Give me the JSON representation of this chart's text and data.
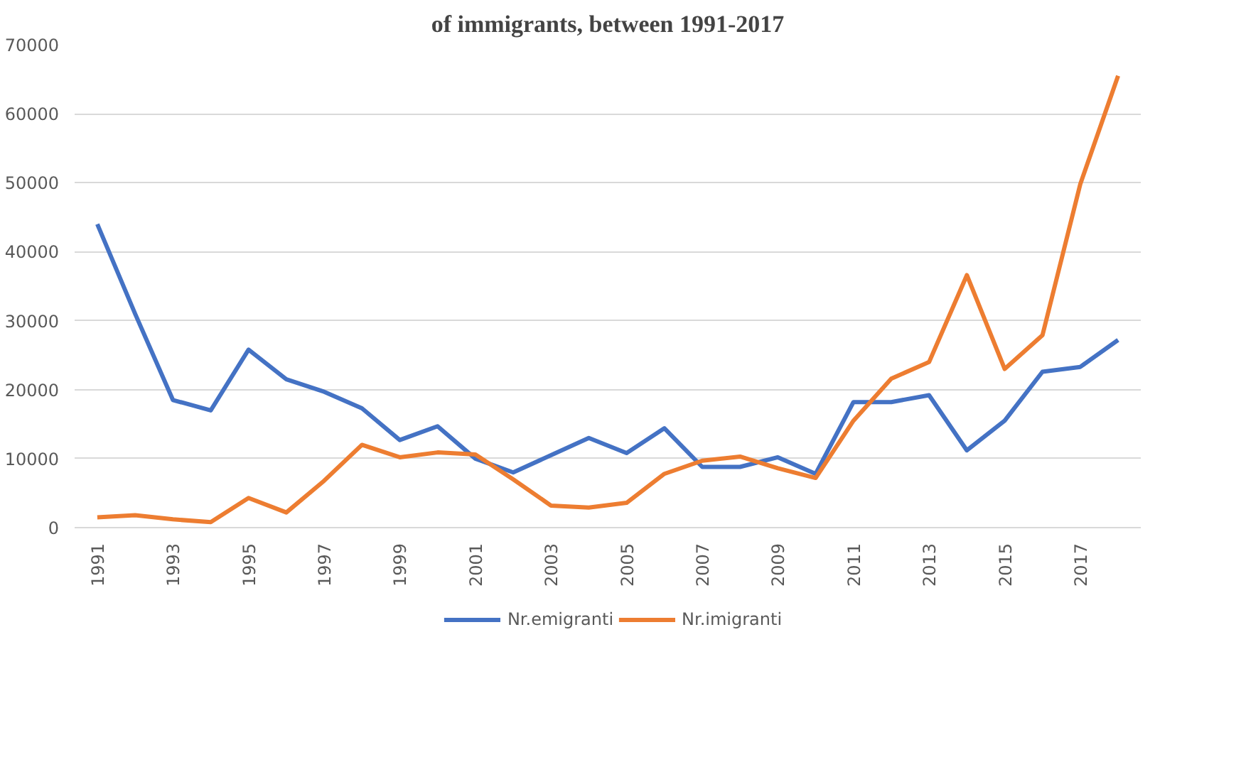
{
  "chart_data": {
    "type": "line",
    "title": "of immigrants, between 1991-2017",
    "categories": [
      "1991",
      null,
      "1993",
      null,
      "1995",
      null,
      "1997",
      null,
      "1999",
      null,
      "2001",
      null,
      "2003",
      null,
      "2005",
      null,
      "2007",
      null,
      "2009",
      null,
      "2011",
      null,
      "2013",
      null,
      "2015",
      null,
      "2017",
      null
    ],
    "series": [
      {
        "name": "Nr.emigranti",
        "color": "#4472c4",
        "values": [
          44000,
          31000,
          18500,
          17000,
          25800,
          21500,
          19700,
          17300,
          12700,
          14700,
          10000,
          8000,
          10500,
          13000,
          10800,
          14400,
          8800,
          8800,
          10200,
          7800,
          18200,
          18200,
          19200,
          11200,
          15500,
          22600,
          23300,
          27200
        ]
      },
      {
        "name": "Nr.imigranti",
        "color": "#ed7d31",
        "values": [
          1500,
          1800,
          1200,
          800,
          4300,
          2200,
          6800,
          12000,
          10200,
          10900,
          10600,
          7000,
          3200,
          2900,
          3600,
          7800,
          9700,
          10300,
          8600,
          7200,
          15500,
          21600,
          24000,
          36600,
          23000,
          27900,
          49800,
          65500
        ]
      }
    ],
    "ylim": [
      0,
      70000
    ],
    "yticks": [
      0,
      10000,
      20000,
      30000,
      40000,
      50000,
      60000,
      70000
    ],
    "grid": "y",
    "legend": "bottom",
    "marker": "none",
    "line_style": "solid"
  }
}
